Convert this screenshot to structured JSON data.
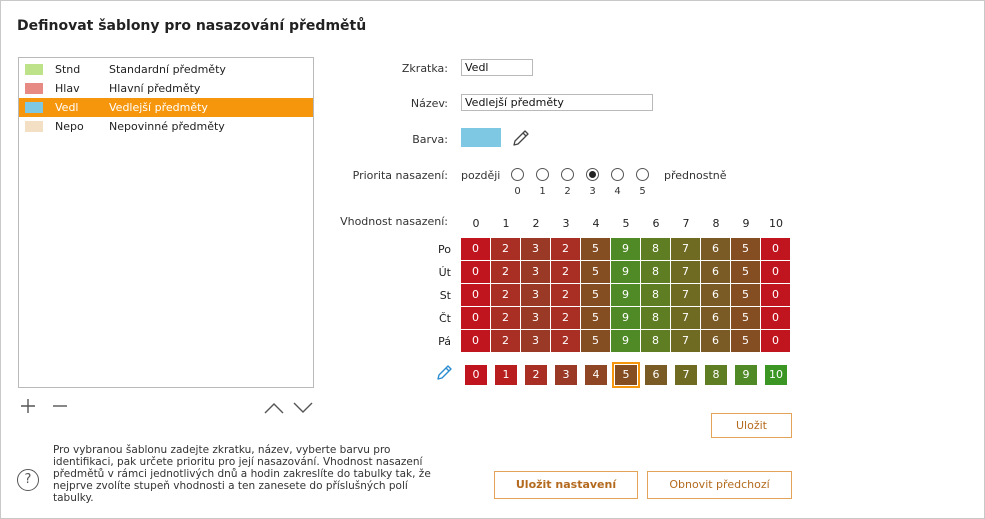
{
  "dialog": {
    "title": "Definovat šablony pro nasazování předmětů"
  },
  "templates": [
    {
      "abbr": "Stnd",
      "name": "Standardní předměty",
      "color": "#bde28a",
      "selected": false
    },
    {
      "abbr": "Hlav",
      "name": "Hlavní předměty",
      "color": "#e88a84",
      "selected": false
    },
    {
      "abbr": "Vedl",
      "name": "Vedlejší předměty",
      "color": "#7ec8e3",
      "selected": true
    },
    {
      "abbr": "Nepo",
      "name": "Nepovinné předměty",
      "color": "#f3dfc4",
      "selected": false
    }
  ],
  "list_controls": {
    "add_icon": "plus-icon",
    "remove_icon": "minus-icon",
    "up_icon": "chevron-up-icon",
    "down_icon": "chevron-down-icon"
  },
  "form": {
    "abbr_label": "Zkratka:",
    "abbr_value": "Vedl",
    "name_label": "Název:",
    "name_value": "Vedlejší předměty",
    "color_label": "Barva:",
    "color_value": "#7ec8e3",
    "eyedropper_icon": "eyedropper-icon",
    "priority_label": "Priorita nasazení:",
    "priority_low": "později",
    "priority_high": "přednostně",
    "priority_options": [
      "0",
      "1",
      "2",
      "3",
      "4",
      "5"
    ],
    "priority_selected": 3
  },
  "suitability": {
    "label": "Vhodnost nasazení:",
    "hours": [
      "0",
      "1",
      "2",
      "3",
      "4",
      "5",
      "6",
      "7",
      "8",
      "9",
      "10"
    ],
    "days": [
      "Po",
      "Út",
      "St",
      "Čt",
      "Pá"
    ],
    "values": [
      [
        0,
        2,
        3,
        2,
        5,
        9,
        8,
        7,
        6,
        5,
        0
      ],
      [
        0,
        2,
        3,
        2,
        5,
        9,
        8,
        7,
        6,
        5,
        0
      ],
      [
        0,
        2,
        3,
        2,
        5,
        9,
        8,
        7,
        6,
        5,
        0
      ],
      [
        0,
        2,
        3,
        2,
        5,
        9,
        8,
        7,
        6,
        5,
        0
      ],
      [
        0,
        2,
        3,
        2,
        5,
        9,
        8,
        7,
        6,
        5,
        0
      ]
    ],
    "palette": [
      "0",
      "1",
      "2",
      "3",
      "4",
      "5",
      "6",
      "7",
      "8",
      "9",
      "10"
    ],
    "palette_selected": 5,
    "pencil_icon": "pencil-icon",
    "colors": {
      "0": "#c0141e",
      "1": "#b81e1e",
      "2": "#a92e24",
      "3": "#9a3a26",
      "4": "#8e4624",
      "5": "#854d22",
      "6": "#7a5b26",
      "7": "#6f6b22",
      "8": "#5f7d22",
      "9": "#4f8a26",
      "10": "#3b9623"
    }
  },
  "buttons": {
    "save": "Uložit",
    "save_settings": "Uložit nastavení",
    "restore": "Obnovit předchozí"
  },
  "help": {
    "text": "Pro vybranou šablonu zadejte zkratku, název, vyberte barvu pro identifikaci, pak určete prioritu pro její nasazování. Vhodnost nasazení předmětů v rámci jednotlivých dnů a hodin zakreslíte do tabulky tak, že nejprve zvolíte stupeň vhodnosti a ten zanesete do příslušných polí tabulky.",
    "icon": "question-icon"
  }
}
